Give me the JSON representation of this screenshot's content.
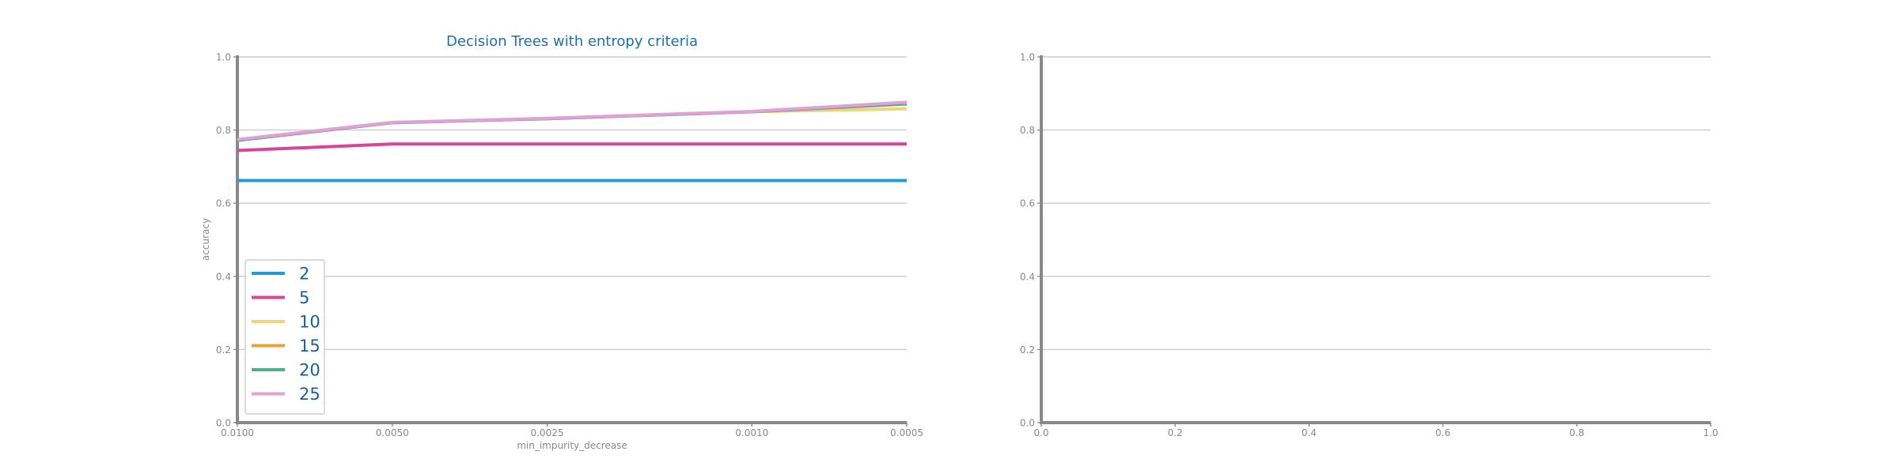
{
  "chart_data": [
    {
      "type": "line",
      "title": "Decision Trees with entropy criteria",
      "xlabel": "min_impurity_decrease",
      "ylabel": "accuracy",
      "x_scale": "log",
      "x_inverted": true,
      "xlim": [
        0.01,
        0.0005
      ],
      "ylim": [
        0.0,
        1.0
      ],
      "grid": "horizontal",
      "legend_position": "lower-left",
      "x_tick_labels": [
        "0.0100",
        "0.0050",
        "0.0025",
        "0.0010",
        "0.0005"
      ],
      "x_ticks": [
        0.01,
        0.005,
        0.0025,
        0.001,
        0.0005
      ],
      "y_tick_labels": [
        "0.0",
        "0.2",
        "0.4",
        "0.6",
        "0.8",
        "1.0"
      ],
      "y_ticks": [
        0.0,
        0.2,
        0.4,
        0.6,
        0.8,
        1.0
      ],
      "x": [
        0.01,
        0.005,
        0.0025,
        0.001,
        0.0005
      ],
      "series": [
        {
          "name": "2",
          "color": "#1f9bd7",
          "values": [
            0.662,
            0.662,
            0.662,
            0.662,
            0.662
          ]
        },
        {
          "name": "5",
          "color": "#d9439b",
          "values": [
            0.744,
            0.762,
            0.762,
            0.762,
            0.762
          ]
        },
        {
          "name": "10",
          "color": "#f2d27a",
          "values": [
            0.772,
            0.82,
            0.831,
            0.85,
            0.858
          ]
        },
        {
          "name": "15",
          "color": "#e9a23b",
          "values": [
            0.772,
            0.82,
            0.831,
            0.85,
            0.871
          ]
        },
        {
          "name": "20",
          "color": "#4caf8f",
          "values": [
            0.772,
            0.82,
            0.831,
            0.85,
            0.872
          ]
        },
        {
          "name": "25",
          "color": "#e29fd8",
          "values": [
            0.774,
            0.821,
            0.832,
            0.851,
            0.876
          ]
        }
      ]
    },
    {
      "type": "line",
      "title": "",
      "xlabel": "",
      "ylabel": "",
      "xlim": [
        0.0,
        1.0
      ],
      "ylim": [
        0.0,
        1.0
      ],
      "grid": "horizontal",
      "x_tick_labels": [
        "0.0",
        "0.2",
        "0.4",
        "0.6",
        "0.8",
        "1.0"
      ],
      "x_ticks": [
        0.0,
        0.2,
        0.4,
        0.6,
        0.8,
        1.0
      ],
      "y_tick_labels": [
        "0.0",
        "0.2",
        "0.4",
        "0.6",
        "0.8",
        "1.0"
      ],
      "y_ticks": [
        0.0,
        0.2,
        0.4,
        0.6,
        0.8,
        1.0
      ],
      "series": []
    }
  ]
}
